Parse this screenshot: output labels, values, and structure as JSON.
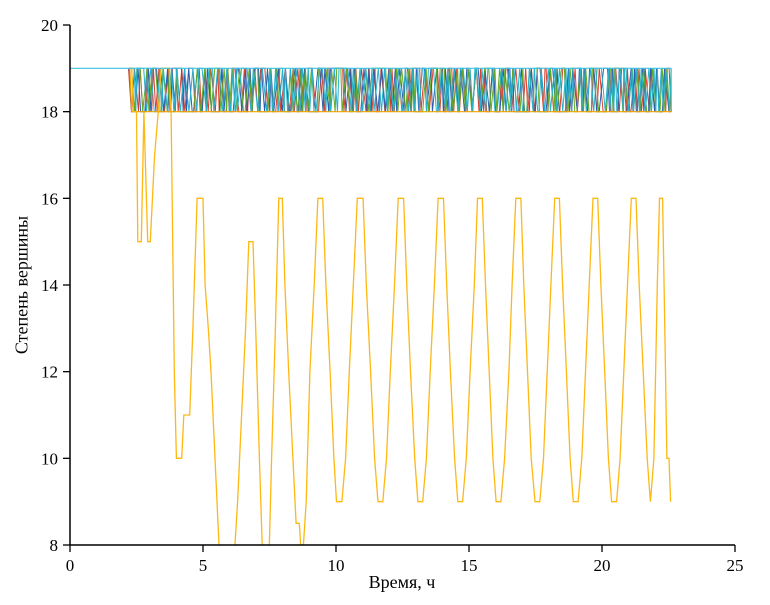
{
  "chart_data": {
    "type": "line",
    "title": "",
    "xlabel": "Время, ч",
    "ylabel": "Степень вершины",
    "xlim": [
      0,
      25
    ],
    "ylim": [
      8,
      20
    ],
    "xticks": [
      0,
      5,
      10,
      15,
      20,
      25
    ],
    "yticks": [
      8,
      10,
      12,
      14,
      16,
      18,
      20
    ],
    "grid": false,
    "legend": "none",
    "axis_color": "#000000",
    "noise_band": {
      "comment": "dense random oscillation of several node-degree curves between 18 and 19",
      "x_start": 2.2,
      "x_end": 22.6,
      "y_min": 18,
      "y_max": 19,
      "seed": 11,
      "colors": [
        "#d9422f",
        "#2c5fae",
        "#64a922",
        "#27b3cf"
      ]
    },
    "series": [
      {
        "name": "degree-constant-18",
        "color": "#f2a200",
        "width": 1.2,
        "points": [
          [
            2.25,
            19
          ],
          [
            2.32,
            18
          ],
          [
            22.6,
            18
          ]
        ]
      },
      {
        "name": "degree-deep-oscillation",
        "color": "#fdb813",
        "width": 1.3,
        "points": [
          [
            2.2,
            19
          ],
          [
            2.32,
            19
          ],
          [
            2.38,
            18
          ],
          [
            2.5,
            18
          ],
          [
            2.55,
            15
          ],
          [
            2.68,
            15
          ],
          [
            2.78,
            18
          ],
          [
            2.92,
            15
          ],
          [
            3.02,
            15
          ],
          [
            3.18,
            17
          ],
          [
            3.32,
            18
          ],
          [
            3.42,
            19
          ],
          [
            3.72,
            19
          ],
          [
            3.8,
            18
          ],
          [
            3.92,
            12
          ],
          [
            4.0,
            10
          ],
          [
            4.2,
            10
          ],
          [
            4.28,
            11
          ],
          [
            4.5,
            11
          ],
          [
            4.62,
            13
          ],
          [
            4.78,
            16
          ],
          [
            5.0,
            16
          ],
          [
            5.08,
            14
          ],
          [
            5.2,
            13
          ],
          [
            5.3,
            12
          ],
          [
            5.45,
            10
          ],
          [
            5.6,
            8
          ],
          [
            5.75,
            7
          ],
          [
            5.95,
            7
          ],
          [
            6.05,
            8
          ],
          [
            6.15,
            7.5
          ],
          [
            6.3,
            9
          ],
          [
            6.45,
            11
          ],
          [
            6.6,
            13
          ],
          [
            6.72,
            15
          ],
          [
            6.88,
            15
          ],
          [
            6.98,
            13
          ],
          [
            7.12,
            10
          ],
          [
            7.28,
            7
          ],
          [
            7.45,
            7
          ],
          [
            7.58,
            10
          ],
          [
            7.72,
            13
          ],
          [
            7.85,
            16
          ],
          [
            7.98,
            16
          ],
          [
            8.08,
            14
          ],
          [
            8.22,
            12
          ],
          [
            8.38,
            10
          ],
          [
            8.5,
            8.5
          ],
          [
            8.62,
            8.5
          ],
          [
            8.72,
            7.5
          ],
          [
            8.88,
            9
          ],
          [
            9.02,
            12
          ],
          [
            9.18,
            14
          ],
          [
            9.32,
            16
          ],
          [
            9.5,
            16
          ],
          [
            9.62,
            14
          ],
          [
            9.78,
            12
          ],
          [
            9.92,
            10
          ],
          [
            10.02,
            9
          ],
          [
            10.22,
            9
          ],
          [
            10.36,
            10
          ],
          [
            10.5,
            12
          ],
          [
            10.65,
            14
          ],
          [
            10.8,
            16
          ],
          [
            11.02,
            16
          ],
          [
            11.14,
            14
          ],
          [
            11.3,
            12
          ],
          [
            11.45,
            10
          ],
          [
            11.58,
            9
          ],
          [
            11.76,
            9
          ],
          [
            11.9,
            10
          ],
          [
            12.04,
            12
          ],
          [
            12.2,
            14
          ],
          [
            12.34,
            16
          ],
          [
            12.54,
            16
          ],
          [
            12.66,
            14
          ],
          [
            12.8,
            12
          ],
          [
            12.96,
            10
          ],
          [
            13.08,
            9
          ],
          [
            13.26,
            9
          ],
          [
            13.4,
            10
          ],
          [
            13.54,
            12
          ],
          [
            13.7,
            14
          ],
          [
            13.84,
            16
          ],
          [
            14.04,
            16
          ],
          [
            14.16,
            14
          ],
          [
            14.3,
            12
          ],
          [
            14.46,
            10
          ],
          [
            14.58,
            9
          ],
          [
            14.76,
            9
          ],
          [
            14.9,
            10
          ],
          [
            15.04,
            12
          ],
          [
            15.2,
            14
          ],
          [
            15.32,
            16
          ],
          [
            15.5,
            16
          ],
          [
            15.62,
            14
          ],
          [
            15.76,
            12
          ],
          [
            15.9,
            10
          ],
          [
            16.02,
            9
          ],
          [
            16.2,
            9
          ],
          [
            16.34,
            10
          ],
          [
            16.5,
            12
          ],
          [
            16.62,
            14
          ],
          [
            16.76,
            16
          ],
          [
            16.95,
            16
          ],
          [
            17.06,
            14
          ],
          [
            17.2,
            12
          ],
          [
            17.34,
            10
          ],
          [
            17.48,
            9
          ],
          [
            17.66,
            9
          ],
          [
            17.8,
            10
          ],
          [
            17.94,
            12
          ],
          [
            18.08,
            14
          ],
          [
            18.22,
            16
          ],
          [
            18.4,
            16
          ],
          [
            18.52,
            14
          ],
          [
            18.66,
            12
          ],
          [
            18.8,
            10
          ],
          [
            18.92,
            9
          ],
          [
            19.1,
            9
          ],
          [
            19.24,
            10
          ],
          [
            19.38,
            12
          ],
          [
            19.52,
            14
          ],
          [
            19.66,
            16
          ],
          [
            19.84,
            16
          ],
          [
            19.96,
            14
          ],
          [
            20.1,
            12
          ],
          [
            20.24,
            10
          ],
          [
            20.36,
            9
          ],
          [
            20.55,
            9
          ],
          [
            20.68,
            10
          ],
          [
            20.82,
            12
          ],
          [
            20.96,
            14
          ],
          [
            21.1,
            16
          ],
          [
            21.28,
            16
          ],
          [
            21.4,
            14
          ],
          [
            21.55,
            12
          ],
          [
            21.7,
            10
          ],
          [
            21.82,
            9
          ],
          [
            21.95,
            10
          ],
          [
            22.08,
            14
          ],
          [
            22.16,
            16
          ],
          [
            22.28,
            16
          ],
          [
            22.36,
            13
          ],
          [
            22.44,
            10
          ],
          [
            22.52,
            10
          ],
          [
            22.58,
            9
          ]
        ]
      },
      {
        "name": "degree-constant-19",
        "color": "#3fc1e3",
        "width": 1.2,
        "points": [
          [
            0,
            19
          ],
          [
            22.6,
            19
          ]
        ]
      }
    ]
  }
}
